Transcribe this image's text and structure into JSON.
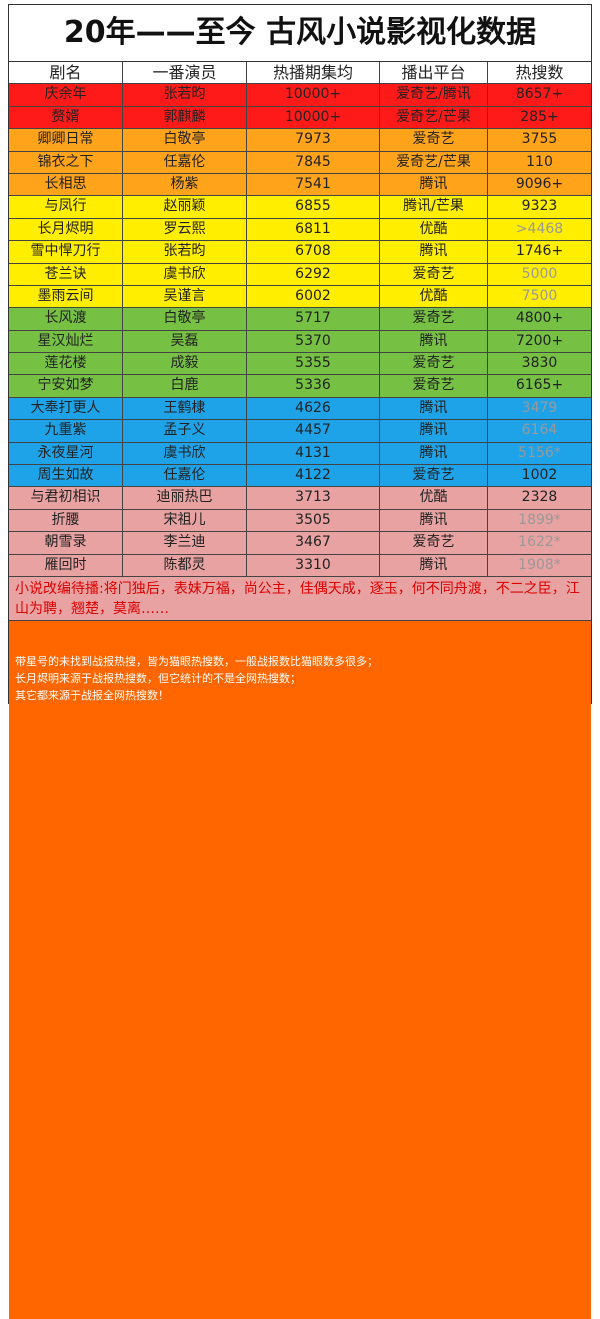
{
  "title": "20年——至今 古风小说影视化数据",
  "table": {
    "header": [
      "剧名",
      "一番演员",
      "热播期集均",
      "播出平台",
      "热搜数"
    ],
    "groups": [
      {
        "color": "#ff1a1a",
        "rows": [
          [
            "庆余年",
            "张若昀",
            "10000+",
            "爱奇艺/腾讯",
            "8657+"
          ],
          [
            "赘婿",
            "郭麒麟",
            "10000+",
            "爱奇艺/芒果",
            "285+"
          ]
        ]
      },
      {
        "color": "#ffa31a",
        "rows": [
          [
            "卿卿日常",
            "白敬亭",
            "7973",
            "爱奇艺",
            "3755"
          ],
          [
            "锦衣之下",
            "任嘉伦",
            "7845",
            "爱奇艺/芒果",
            "110"
          ],
          [
            "长相思",
            "杨紫",
            "7541",
            "腾讯",
            "9096+"
          ]
        ]
      },
      {
        "color": "#ffee00",
        "rows": [
          [
            "与凤行",
            "赵丽颖",
            "6855",
            "腾讯/芒果",
            "9323"
          ],
          [
            "长月烬明",
            "罗云熙",
            "6811",
            "优酷",
            ">4468"
          ],
          [
            "雪中悍刀行",
            "张若昀",
            "6708",
            "腾讯",
            "1746+"
          ],
          [
            "苍兰诀",
            "虞书欣",
            "6292",
            "爱奇艺",
            "5000"
          ],
          [
            "墨雨云间",
            "吴谨言",
            "6002",
            "优酷",
            "7500"
          ]
        ]
      },
      {
        "color": "#76c043",
        "rows": [
          [
            "长风渡",
            "白敬亭",
            "5717",
            "爱奇艺",
            "4800+"
          ],
          [
            "星汉灿烂",
            "吴磊",
            "5370",
            "腾讯",
            "7200+"
          ],
          [
            "莲花楼",
            "成毅",
            "5355",
            "爱奇艺",
            "3830"
          ],
          [
            "宁安如梦",
            "白鹿",
            "5336",
            "爱奇艺",
            "6165+"
          ]
        ]
      },
      {
        "color": "#1ea3e8",
        "rows": [
          [
            "大奉打更人",
            "王鹤棣",
            "4626",
            "腾讯",
            "3479"
          ],
          [
            "九重紫",
            "孟子义",
            "4457",
            "腾讯",
            "6164"
          ],
          [
            "永夜星河",
            "虞书欣",
            "4131",
            "腾讯",
            "5156*"
          ],
          [
            "周生如故",
            "任嘉伦",
            "4122",
            "爱奇艺",
            "1002"
          ]
        ]
      },
      {
        "color": "#e8a2a2",
        "rows": [
          [
            "与君初相识",
            "迪丽热巴",
            "3713",
            "优酷",
            "2328"
          ],
          [
            "折腰",
            "宋祖儿",
            "3505",
            "腾讯",
            "1899*"
          ],
          [
            "朝雪录",
            "李兰迪",
            "3467",
            "爱奇艺",
            "1622*"
          ],
          [
            "雁回时",
            "陈都灵",
            "3310",
            "腾讯",
            "1908*"
          ]
        ]
      }
    ]
  },
  "note": "小说改编待播:将门独后，表妹万福，尚公主，佳偶天成，逐玉，何不同舟渡，不二之臣，江山为聘，翘楚，莫离……",
  "footer": [
    "带星号的未找到战报热搜，皆为猫眼热搜数，一般战报数比猫眼数多很多；",
    "长月烬明来源于战报热搜数，但它统计的不是全网热搜数；",
    "其它都来源于战报全网热搜数！"
  ]
}
